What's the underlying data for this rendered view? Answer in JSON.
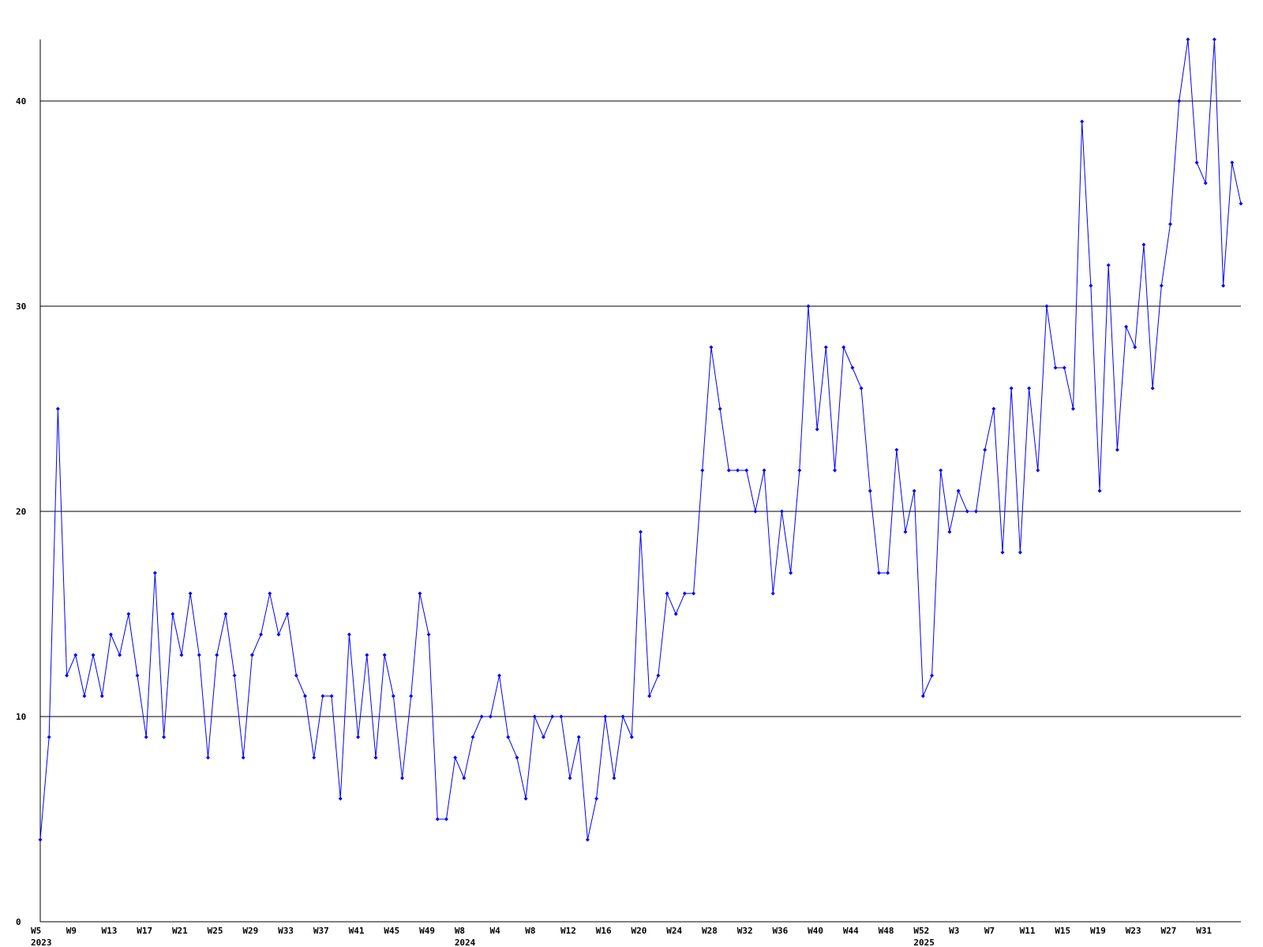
{
  "chart_data": {
    "type": "line",
    "title": "",
    "xlabel": "",
    "ylabel": "",
    "ylim": [
      0,
      43
    ],
    "y_ticks": [
      0,
      10,
      20,
      30,
      40
    ],
    "grid": "horizontal",
    "legend": "none",
    "colors": {
      "line": "#0000ff",
      "grid": "#000000",
      "axis": "#000000",
      "background": "#ffffff"
    },
    "x_week_labels": [
      "W5",
      "W9",
      "W13",
      "W17",
      "W21",
      "W25",
      "W29",
      "W33",
      "W37",
      "W41",
      "W45",
      "W49",
      "W8",
      "W4",
      "W8",
      "W12",
      "W16",
      "W20",
      "W24",
      "W28",
      "W32",
      "W36",
      "W40",
      "W44",
      "W48",
      "W52",
      "W3",
      "W7",
      "W11",
      "W15",
      "W19",
      "W23",
      "W27",
      "W31"
    ],
    "x_year_labels": [
      {
        "label": "2023",
        "at_week_index": 0
      },
      {
        "label": "2024",
        "at_week_index": 48
      },
      {
        "label": "2025",
        "at_week_index": 100
      }
    ],
    "series": [
      {
        "start_week": "2023-W5",
        "values": [
          4,
          9,
          25,
          12,
          13,
          11,
          13,
          11,
          14,
          13,
          15,
          12,
          9,
          17,
          9,
          15,
          13,
          16,
          13,
          8,
          13,
          15,
          12,
          8,
          13,
          14,
          16,
          14,
          15,
          12,
          11,
          8,
          11,
          11,
          6,
          14,
          9,
          13,
          8,
          13,
          11,
          7,
          11,
          16,
          14,
          5,
          5,
          8,
          7,
          9,
          10,
          10,
          12,
          9,
          8,
          6,
          10,
          9,
          10,
          10,
          7,
          9,
          4,
          6,
          10,
          7,
          10,
          9,
          19,
          11,
          12,
          16,
          15,
          16,
          16,
          22,
          28,
          25,
          22,
          22,
          22,
          20,
          22,
          16,
          20,
          17,
          22,
          30,
          24,
          28,
          22,
          28,
          27,
          26,
          21,
          17,
          17,
          23,
          19,
          21,
          11,
          12,
          22,
          19,
          21,
          20,
          20,
          23,
          25,
          18,
          26,
          18,
          26,
          22,
          30,
          27,
          27,
          25,
          39,
          31,
          21,
          32,
          23,
          29,
          28,
          33,
          26,
          31,
          34,
          40,
          43,
          37,
          36,
          43,
          31,
          37,
          35
        ]
      }
    ]
  }
}
